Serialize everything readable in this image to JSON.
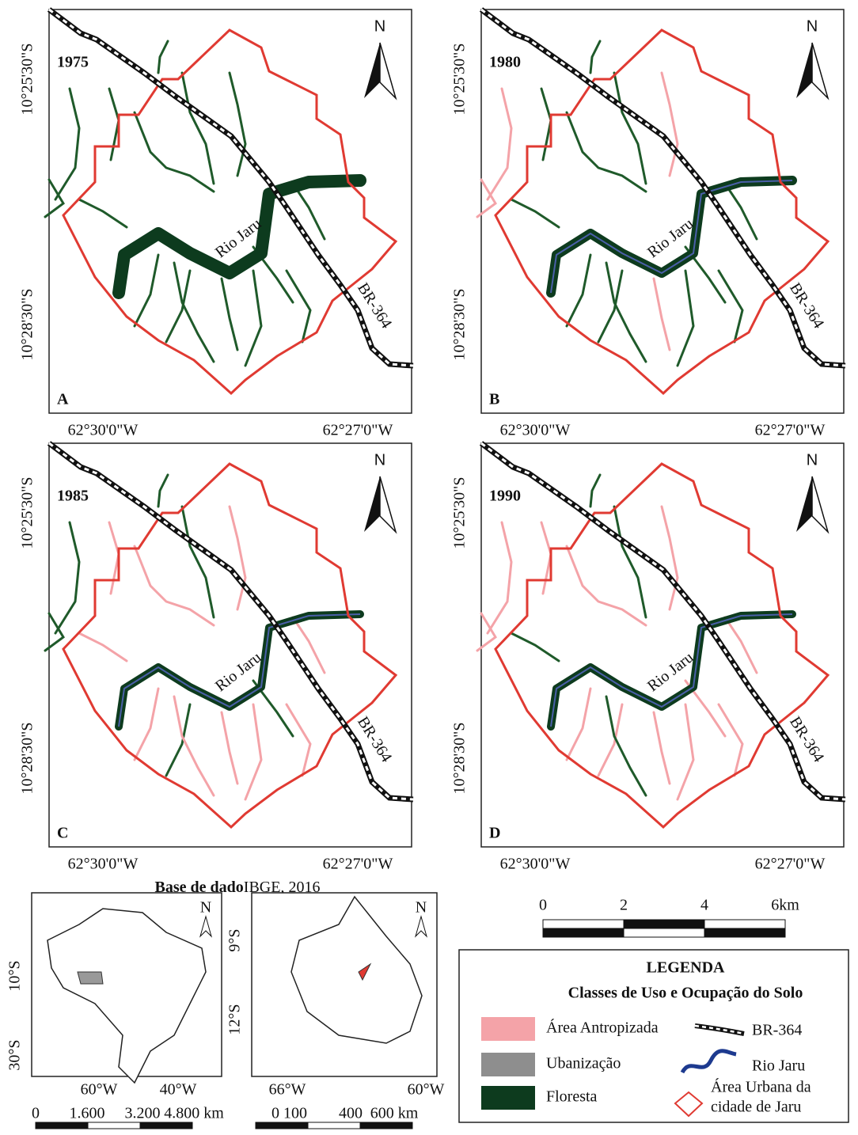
{
  "panels": [
    {
      "label": "A",
      "year": "1975",
      "north": "N",
      "lat_labels": [
        "10°25'30\"S",
        "10°28'30\"S"
      ],
      "lon_labels": [
        "62°30'0\"W",
        "62°27'0\"W"
      ],
      "river_label": "Rio Jaru",
      "road_label": "BR-364"
    },
    {
      "label": "B",
      "year": "1980",
      "north": "N",
      "lat_labels": [
        "10°25'30\"S",
        "10°28'30\"S"
      ],
      "lon_labels": [
        "62°30'0\"W",
        "62°27'0\"W"
      ],
      "river_label": "Rio Jaru",
      "road_label": "BR-364"
    },
    {
      "label": "C",
      "year": "1985",
      "north": "N",
      "lat_labels": [
        "10°25'30\"S",
        "10°28'30\"S"
      ],
      "lon_labels": [
        "62°30'0\"W",
        "62°27'0\"W"
      ],
      "river_label": "Rio Jaru",
      "road_label": "BR-364"
    },
    {
      "label": "D",
      "year": "1990",
      "north": "N",
      "lat_labels": [
        "10°25'30\"S",
        "10°28'30\"S"
      ],
      "lon_labels": [
        "62°30'0\"W",
        "62°27'0\"W"
      ],
      "river_label": "Rio Jaru",
      "road_label": "BR-364"
    }
  ],
  "source": {
    "bold": "Base de dado",
    "text": "IBGE, 2016"
  },
  "inset_brazil": {
    "north": "N",
    "lat_labels": [
      "10°S",
      "30°S"
    ],
    "lon_labels": [
      "60°W",
      "40°W"
    ],
    "scale_labels": [
      "0",
      "1.600",
      "3.200",
      "4.800 km"
    ]
  },
  "inset_rondonia": {
    "north": "N",
    "lat_labels": [
      "9°S",
      "12°S"
    ],
    "lon_labels": [
      "66°W",
      "60°W"
    ],
    "scale_labels": [
      "0 100",
      "400",
      "600 km"
    ]
  },
  "scale_bar": {
    "labels": [
      "0",
      "2",
      "4",
      "6km"
    ]
  },
  "legend": {
    "title": "LEGENDA",
    "subtitle": "Classes de Uso e Ocupação do Solo",
    "items": [
      "Área Antropizada",
      "Ubanização",
      "Floresta",
      "BR-364",
      "Rio Jaru",
      "Área Urbana da",
      "cidade de Jaru"
    ]
  }
}
